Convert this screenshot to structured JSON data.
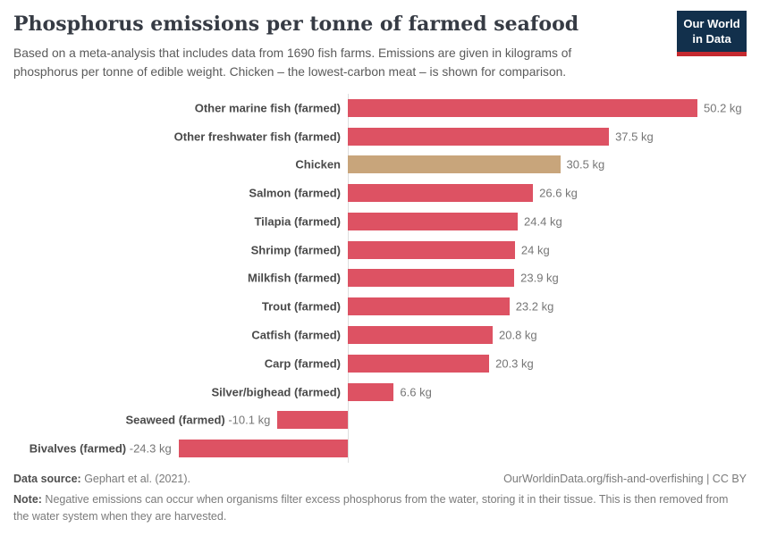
{
  "header": {
    "title": "Phosphorus emissions per tonne of farmed seafood",
    "subtitle": "Based on a meta-analysis that includes data from 1690 fish farms. Emissions are given in kilograms of phosphorus per tonne of edible weight. Chicken – the lowest-carbon meat – is shown for comparison.",
    "logo": {
      "line1": "Our World",
      "line2": "in Data",
      "bg_color": "#12304C",
      "stripe_color": "#C5292F"
    }
  },
  "chart_data": {
    "type": "bar",
    "orientation": "horizontal",
    "title": "Phosphorus emissions per tonne of farmed seafood",
    "unit": "kg",
    "xlim": [
      -24.3,
      50.2
    ],
    "grid": false,
    "categories": [
      "Other marine fish (farmed)",
      "Other freshwater fish (farmed)",
      "Chicken",
      "Salmon (farmed)",
      "Tilapia (farmed)",
      "Shrimp (farmed)",
      "Milkfish (farmed)",
      "Trout (farmed)",
      "Catfish (farmed)",
      "Carp (farmed)",
      "Silver/bighead (farmed)",
      "Seaweed (farmed)",
      "Bivalves (farmed)"
    ],
    "values": [
      50.2,
      37.5,
      30.5,
      26.6,
      24.4,
      24,
      23.9,
      23.2,
      20.8,
      20.3,
      6.6,
      -10.1,
      -24.3
    ],
    "value_labels": [
      "50.2 kg",
      "37.5 kg",
      "30.5 kg",
      "26.6 kg",
      "24.4 kg",
      "24 kg",
      "23.9 kg",
      "23.2 kg",
      "20.8 kg",
      "20.3 kg",
      "6.6 kg",
      "-10.1 kg",
      "-24.3 kg"
    ],
    "bar_color": "#DD5263",
    "highlight_category": "Chicken",
    "highlight_color": "#C8A57B",
    "axis_color": "#dedede"
  },
  "footer": {
    "data_source_label": "Data source:",
    "data_source_text": " Gephart et al. (2021).",
    "attribution": "OurWorldinData.org/fish-and-overfishing | CC BY",
    "note_label": "Note:",
    "note_text": " Negative emissions can occur when organisms filter excess phosphorus from the water, storing it in their tissue. This is then removed from the water system when they are harvested."
  }
}
